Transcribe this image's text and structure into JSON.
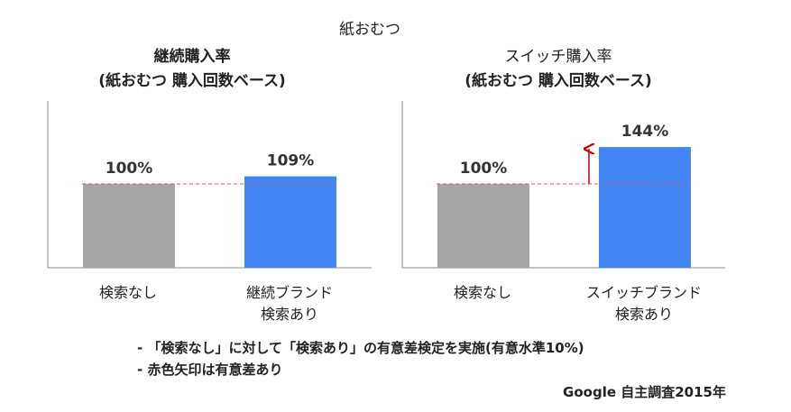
{
  "title": "紙おむつ",
  "panels": [
    {
      "title_line1": "継続購入率",
      "title_line2": "(紙おむつ 購入回数ベース)",
      "categories": [
        "検索なし",
        "継続ブランド\n検索あり"
      ]
    },
    {
      "title_line1": "スイッチ購入率",
      "title_line2": "(紙おむつ 購入回数ベース)",
      "categories": [
        "検索なし",
        "スイッチブランド\n検索あり"
      ]
    }
  ],
  "notes": [
    "- 「検索なし」に対して「検索あり」の有意差検定を実施(有意水準10%)",
    "- 赤色矢印は有意差あり"
  ],
  "source": "Google 自主調査2015年",
  "colors": {
    "gray_bar": "#a6a6a6",
    "blue_bar": "#4285f4",
    "reference_line": "#d9534f",
    "arrow": "#cc0000",
    "axis": "#888888"
  },
  "chart_data": [
    {
      "type": "bar",
      "title": "継続購入率 (紙おむつ 購入回数ベース)",
      "categories": [
        "検索なし",
        "継続ブランド 検索あり"
      ],
      "values": [
        100,
        109
      ],
      "labels": [
        "100%",
        "109%"
      ],
      "unit": "%",
      "reference_line": 100,
      "significant_arrow": false
    },
    {
      "type": "bar",
      "title": "スイッチ購入率 (紙おむつ 購入回数ベース)",
      "categories": [
        "検索なし",
        "スイッチブランド 検索あり"
      ],
      "values": [
        100,
        144
      ],
      "labels": [
        "100%",
        "144%"
      ],
      "unit": "%",
      "reference_line": 100,
      "significant_arrow": true
    }
  ]
}
